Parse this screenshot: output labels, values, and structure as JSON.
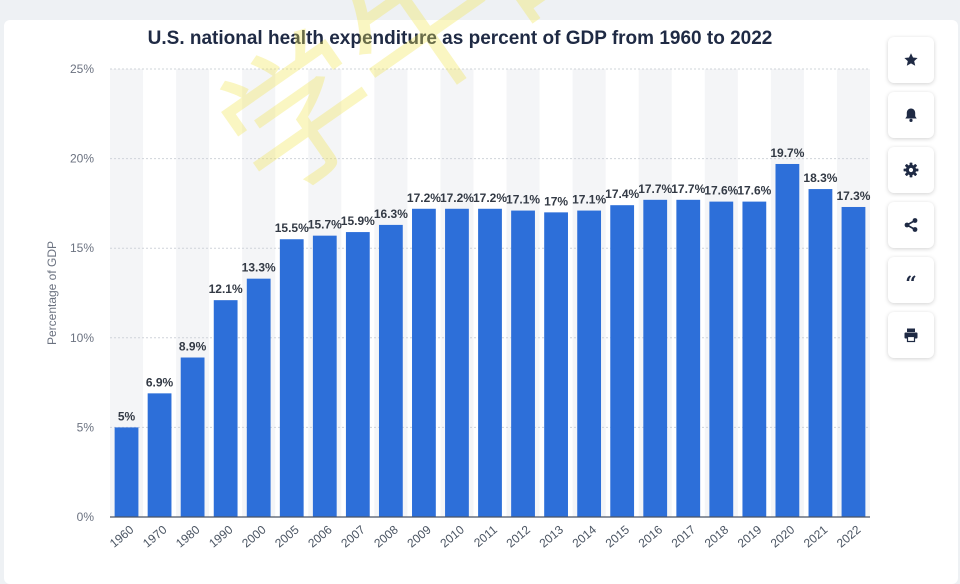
{
  "title": "U.S. national health expenditure as percent of GDP from 1960 to 2022",
  "watermark_text": "学牛研究所",
  "sidebar": {
    "buttons": [
      {
        "name": "favorite-button",
        "icon": "star-icon"
      },
      {
        "name": "notification-button",
        "icon": "bell-icon"
      },
      {
        "name": "settings-button",
        "icon": "gear-icon"
      },
      {
        "name": "share-button",
        "icon": "share-icon"
      },
      {
        "name": "cite-button",
        "icon": "quote-icon",
        "glyph": "“"
      },
      {
        "name": "print-button",
        "icon": "printer-icon"
      }
    ]
  },
  "chart_data": {
    "type": "bar",
    "title": "U.S. national health expenditure as percent of GDP from 1960 to 2022",
    "ylabel": "Percentage of GDP",
    "xlabel": "",
    "ylim": [
      0,
      25
    ],
    "yticks": [
      "0%",
      "5%",
      "10%",
      "15%",
      "20%",
      "25%"
    ],
    "categories": [
      "1960",
      "1970",
      "1980",
      "1990",
      "2000",
      "2005",
      "2006",
      "2007",
      "2008",
      "2009",
      "2010",
      "2011",
      "2012",
      "2013",
      "2014",
      "2015",
      "2016",
      "2017",
      "2018",
      "2019",
      "2020",
      "2021",
      "2022"
    ],
    "values": [
      5,
      6.9,
      8.9,
      12.1,
      13.3,
      15.5,
      15.7,
      15.9,
      16.3,
      17.2,
      17.2,
      17.2,
      17.1,
      17,
      17.1,
      17.4,
      17.7,
      17.7,
      17.6,
      17.6,
      19.7,
      18.3,
      17.3
    ],
    "data_labels": [
      "5%",
      "6.9%",
      "8.9%",
      "12.1%",
      "13.3%",
      "15.5%",
      "15.7%",
      "15.9%",
      "16.3%",
      "17.2%",
      "17.2%",
      "17.2%",
      "17.1%",
      "17%",
      "17.1%",
      "17.4%",
      "17.7%",
      "17.7%",
      "17.6%",
      "17.6%",
      "19.7%",
      "18.3%",
      "17.3%"
    ],
    "bar_color": "#2d6fd9",
    "grid": true
  }
}
